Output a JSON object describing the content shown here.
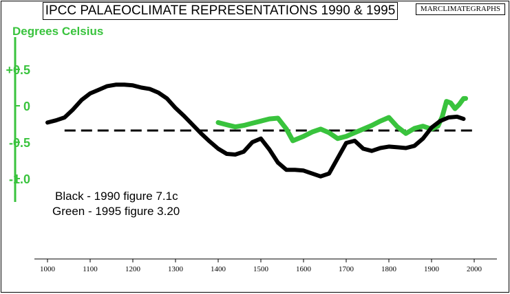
{
  "chart_data": {
    "type": "line",
    "title": "IPCC PALAEOCLIMATE REPRESENTATIONS 1990 & 1995",
    "watermark": "MARCLIMATEGRAPHS",
    "ylabel": "Degrees Celsius",
    "xlabel": "",
    "xlim": [
      975,
      2010
    ],
    "ylim": [
      -1.33,
      0.95
    ],
    "x_ticks": [
      1000,
      1100,
      1200,
      1300,
      1400,
      1500,
      1600,
      1700,
      1800,
      1900,
      2000
    ],
    "y_ticks": [
      {
        "value": 0.5,
        "label": "+0.5"
      },
      {
        "value": 0,
        "label": "0"
      },
      {
        "value": -0.5,
        "label": "-0.5"
      },
      {
        "value": -1.0,
        "label": "-1.0"
      }
    ],
    "grid": false,
    "legend_position": "bottom-left",
    "legend_text": [
      "Black - 1990 figure 7.1c",
      "Green - 1995 figure 3.20"
    ],
    "series": [
      {
        "color": "#000000",
        "style": "solid",
        "x": [
          1000,
          1020,
          1040,
          1060,
          1080,
          1100,
          1120,
          1140,
          1160,
          1180,
          1200,
          1220,
          1240,
          1260,
          1280,
          1300,
          1320,
          1340,
          1360,
          1380,
          1400,
          1420,
          1440,
          1460,
          1480,
          1500,
          1520,
          1540,
          1560,
          1580,
          1600,
          1620,
          1640,
          1660,
          1680,
          1700,
          1720,
          1740,
          1760,
          1780,
          1800,
          1820,
          1840,
          1860,
          1880,
          1900,
          1920,
          1940,
          1960,
          1975
        ],
        "values": [
          -0.23,
          -0.2,
          -0.16,
          -0.05,
          0.08,
          0.17,
          0.22,
          0.27,
          0.29,
          0.29,
          0.28,
          0.25,
          0.23,
          0.18,
          0.1,
          -0.03,
          -0.14,
          -0.26,
          -0.38,
          -0.49,
          -0.59,
          -0.66,
          -0.67,
          -0.63,
          -0.5,
          -0.45,
          -0.6,
          -0.78,
          -0.88,
          -0.88,
          -0.89,
          -0.93,
          -0.97,
          -0.93,
          -0.72,
          -0.51,
          -0.48,
          -0.59,
          -0.62,
          -0.58,
          -0.56,
          -0.57,
          -0.58,
          -0.55,
          -0.45,
          -0.3,
          -0.21,
          -0.16,
          -0.15,
          -0.18
        ]
      },
      {
        "color": "#39c33d",
        "style": "solid",
        "x": [
          1400,
          1420,
          1440,
          1460,
          1480,
          1500,
          1520,
          1540,
          1560,
          1575,
          1600,
          1620,
          1640,
          1660,
          1680,
          1700,
          1720,
          1740,
          1760,
          1780,
          1800,
          1820,
          1840,
          1860,
          1880,
          1900,
          1915,
          1925,
          1935,
          1945,
          1955,
          1965,
          1975,
          1980
        ],
        "values": [
          -0.23,
          -0.26,
          -0.29,
          -0.27,
          -0.24,
          -0.21,
          -0.18,
          -0.17,
          -0.32,
          -0.48,
          -0.42,
          -0.36,
          -0.32,
          -0.37,
          -0.45,
          -0.42,
          -0.37,
          -0.32,
          -0.27,
          -0.21,
          -0.16,
          -0.29,
          -0.38,
          -0.31,
          -0.28,
          -0.32,
          -0.28,
          -0.15,
          0.06,
          0.04,
          -0.04,
          0.02,
          0.1,
          0.1
        ]
      },
      {
        "color": "#000000",
        "style": "dashed",
        "x": [
          1040,
          1998
        ],
        "values": [
          -0.34,
          -0.34
        ]
      }
    ]
  }
}
